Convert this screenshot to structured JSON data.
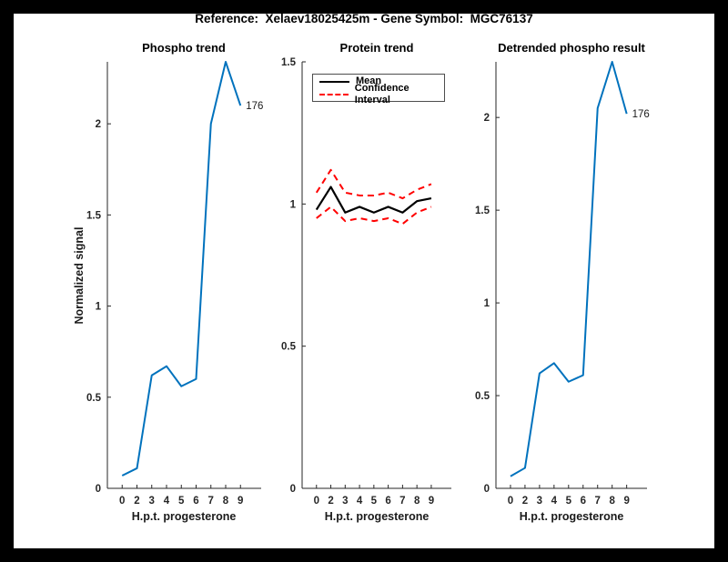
{
  "figure_title": "Reference:  Xelaev18025425m - Gene Symbol:  MGC76137",
  "colors": {
    "blue": "#0072BD",
    "red": "#FF0000",
    "black": "#000000",
    "axis": "#262626",
    "annotation": "#1a1a1a",
    "background": "#FFFFFF",
    "frame": "#000000"
  },
  "chart_data": [
    {
      "type": "line",
      "title": "Phospho trend",
      "xlabel": "H.p.t. progesterone",
      "ylabel": "Normalized signal",
      "x_tick_labels": [
        "0",
        "2",
        "3",
        "4",
        "5",
        "6",
        "7",
        "8",
        "9"
      ],
      "y_ticks": [
        0,
        0.5,
        1,
        1.5,
        2
      ],
      "ylim": [
        0,
        2.34
      ],
      "grid": false,
      "annotation": "176",
      "series": [
        {
          "name": "Phospho signal",
          "dom_name": "phospho-line",
          "color_key": "blue",
          "dash": false,
          "values": [
            0.07,
            0.11,
            0.62,
            0.67,
            0.56,
            0.6,
            2.0,
            2.34,
            2.1
          ]
        }
      ]
    },
    {
      "type": "line",
      "title": "Protein trend",
      "xlabel": "H.p.t. progesterone",
      "ylabel": "",
      "x_tick_labels": [
        "0",
        "2",
        "3",
        "4",
        "5",
        "6",
        "7",
        "8",
        "9"
      ],
      "y_ticks": [
        0,
        0.5,
        1,
        1.5
      ],
      "ylim": [
        0,
        1.5
      ],
      "grid": false,
      "legend": {
        "position": "top-left",
        "entries": [
          {
            "label": "Mean",
            "color_key": "black",
            "dash": false
          },
          {
            "label": "Confidence Interval",
            "color_key": "red",
            "dash": true
          }
        ]
      },
      "series": [
        {
          "name": "Mean",
          "dom_name": "mean-line",
          "color_key": "black",
          "dash": false,
          "values": [
            0.98,
            1.06,
            0.97,
            0.99,
            0.97,
            0.99,
            0.97,
            1.01,
            1.02
          ]
        },
        {
          "name": "Confidence Interval upper",
          "dom_name": "confidence-interval-upper-line",
          "color_key": "red",
          "dash": true,
          "values": [
            1.04,
            1.12,
            1.04,
            1.03,
            1.03,
            1.04,
            1.02,
            1.05,
            1.07
          ]
        },
        {
          "name": "Confidence Interval lower",
          "dom_name": "confidence-interval-lower-line",
          "color_key": "red",
          "dash": true,
          "values": [
            0.95,
            0.99,
            0.94,
            0.95,
            0.94,
            0.95,
            0.93,
            0.97,
            0.99
          ]
        }
      ]
    },
    {
      "type": "line",
      "title": "Detrended phospho result",
      "xlabel": "H.p.t. progesterone",
      "ylabel": "",
      "x_tick_labels": [
        "0",
        "2",
        "3",
        "4",
        "5",
        "6",
        "7",
        "8",
        "9"
      ],
      "y_ticks": [
        0,
        0.5,
        1,
        1.5,
        2
      ],
      "ylim": [
        0,
        2.3
      ],
      "grid": false,
      "annotation": "176",
      "series": [
        {
          "name": "Detrended phospho signal",
          "dom_name": "detrended-line",
          "color_key": "blue",
          "dash": false,
          "values": [
            0.065,
            0.11,
            0.62,
            0.675,
            0.575,
            0.61,
            2.05,
            2.3,
            2.02
          ]
        }
      ]
    }
  ]
}
